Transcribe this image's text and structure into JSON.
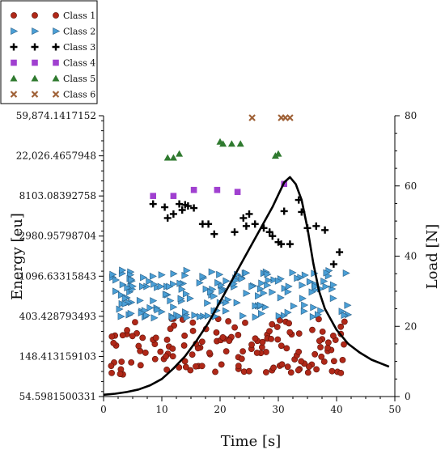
{
  "chart_data": {
    "type": "scatter",
    "title": "",
    "xlabel": "Time [s]",
    "ylabel_left": "Energy [eu]",
    "ylabel_right": "Load [N]",
    "x_ticks": [
      0,
      10,
      20,
      30,
      40,
      50
    ],
    "xlim": [
      0,
      50
    ],
    "y_left_scale": "log",
    "y_left_ticks": [
      "59,874.1417152",
      "22,026.4657948",
      "8103.08392758",
      "2980.95798704",
      "1096.63315843",
      "403.428793493",
      "148.413159103",
      "54.5981500331"
    ],
    "y_left_tick_values": [
      59874.1417152,
      22026.4657948,
      8103.08392758,
      2980.95798704,
      1096.63315843,
      403.428793493,
      148.413159103,
      54.5981500331
    ],
    "y_left_lim": [
      54.5981500331,
      59874.1417152
    ],
    "y_right_ticks": [
      0,
      20,
      40,
      60,
      80
    ],
    "y_right_lim": [
      0,
      80
    ],
    "legend_position": "top-left",
    "grid": false,
    "series": [
      {
        "name": "Class 1",
        "marker": "circle",
        "color": "#b02818",
        "seed": 11,
        "count": 150,
        "x_range": [
          0.5,
          41.5
        ],
        "y_log_range": [
          4.55,
          5.95
        ]
      },
      {
        "name": "Class 2",
        "marker": "triangle-right",
        "color": "#4a9fd6",
        "seed": 23,
        "count": 175,
        "x_range": [
          1.5,
          42
        ],
        "y_log_range": [
          5.95,
          7.15
        ]
      },
      {
        "name": "Class 3",
        "marker": "plus",
        "color": "#000000",
        "points": [
          [
            8.5,
            8.8
          ],
          [
            10.5,
            8.72
          ],
          [
            12,
            8.55
          ],
          [
            13.5,
            8.65
          ],
          [
            11,
            8.45
          ],
          [
            14.5,
            8.75
          ],
          [
            14,
            8.78
          ],
          [
            13,
            8.8
          ],
          [
            15.5,
            8.7
          ],
          [
            17,
            8.3
          ],
          [
            18,
            8.3
          ],
          [
            19,
            8.05
          ],
          [
            22.5,
            8.1
          ],
          [
            24,
            8.45
          ],
          [
            24.5,
            8.25
          ],
          [
            25,
            8.55
          ],
          [
            26,
            8.3
          ],
          [
            27.5,
            8.2
          ],
          [
            28.5,
            8.1
          ],
          [
            29,
            8.0
          ],
          [
            30,
            7.85
          ],
          [
            30.5,
            7.8
          ],
          [
            31,
            8.62
          ],
          [
            32,
            7.8
          ],
          [
            33.5,
            8.9
          ],
          [
            34,
            8.6
          ],
          [
            35,
            8.2
          ],
          [
            36.5,
            8.25
          ],
          [
            38,
            8.15
          ],
          [
            39.5,
            7.3
          ],
          [
            40.5,
            7.6
          ]
        ]
      },
      {
        "name": "Class 4",
        "marker": "square",
        "color": "#a040d0",
        "points": [
          [
            8.5,
            9.0
          ],
          [
            12,
            9.0
          ],
          [
            15.5,
            9.15
          ],
          [
            19.5,
            9.15
          ],
          [
            23,
            9.1
          ],
          [
            31,
            9.3
          ]
        ]
      },
      {
        "name": "Class 5",
        "marker": "triangle-up",
        "color": "#2f7a2f",
        "points": [
          [
            11,
            9.95
          ],
          [
            12,
            9.95
          ],
          [
            13,
            10.05
          ],
          [
            20,
            10.35
          ],
          [
            20.5,
            10.3
          ],
          [
            22,
            10.3
          ],
          [
            23.5,
            10.3
          ],
          [
            29.5,
            10.0
          ],
          [
            30,
            10.05
          ]
        ]
      },
      {
        "name": "Class 6",
        "marker": "x",
        "color": "#a06238",
        "points": [
          [
            25.5,
            10.95
          ],
          [
            30.5,
            10.95
          ],
          [
            31.2,
            10.95
          ],
          [
            32,
            10.95
          ]
        ]
      }
    ],
    "load_curve": {
      "name": "Load",
      "axis": "right",
      "color": "#000000",
      "x": [
        0,
        2,
        4,
        6,
        8,
        10,
        12,
        14,
        16,
        18,
        20,
        22,
        24,
        26,
        28,
        29,
        30,
        31,
        32,
        33,
        34,
        35,
        36,
        37,
        38,
        40,
        42,
        44,
        46,
        49
      ],
      "y": [
        0.5,
        0.8,
        1.3,
        2.0,
        3.2,
        5.0,
        8.0,
        11.5,
        16.0,
        21.0,
        27.0,
        33.0,
        39.0,
        45.0,
        51.0,
        54.0,
        57.5,
        61.0,
        62.5,
        60.5,
        56.0,
        48.0,
        38.0,
        30.0,
        25.0,
        19.0,
        15.0,
        12.5,
        10.5,
        8.5
      ]
    }
  }
}
